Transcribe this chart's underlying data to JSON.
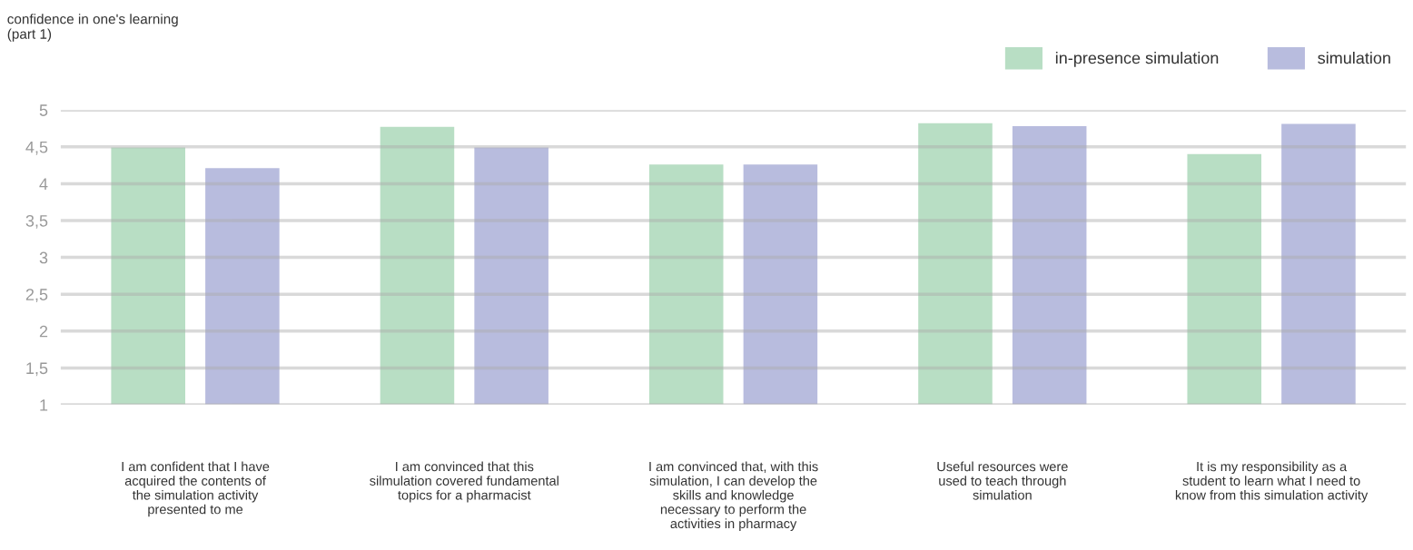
{
  "chart_data": {
    "type": "bar",
    "title": "confidence in one's learning\n(part 1)",
    "categories": [
      "I am confident that I have\nacquired the contents of\nthe simulation activity\npresented to me",
      "I am convinced that this\nsilmulation covered fundamental\ntopics for a pharmacist",
      "I am convinced that, with this\nsimulation, I can develop the\nskills and knowledge\nnecessary to perform the\nactivities in pharmacy",
      "Useful resources were\nused to teach through\nsimulation",
      "It is my responsibility as a\nstudent to learn what I need to\nknow from this simulation activity"
    ],
    "series": [
      {
        "name": "in-presence simulation",
        "color": "#b8dec4",
        "values": [
          4.5,
          4.78,
          4.27,
          4.83,
          4.41
        ]
      },
      {
        "name": "simulation",
        "color": "#b8bcde",
        "values": [
          4.22,
          4.5,
          4.27,
          4.79,
          4.82
        ]
      }
    ],
    "ylim": [
      1,
      5
    ],
    "yticks": [
      1,
      {
        "value": 1.5,
        "label": "1,5"
      },
      2,
      {
        "value": 2.5,
        "label": "2,5"
      },
      3,
      {
        "value": 3.5,
        "label": "3,5"
      },
      4,
      {
        "value": 4.5,
        "label": "4,5"
      },
      5
    ],
    "grid": "y",
    "legend": "top right"
  }
}
